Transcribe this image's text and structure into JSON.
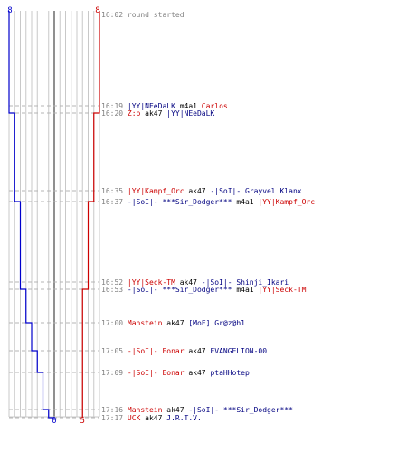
{
  "colors": {
    "blue": "#0000cc",
    "red": "#cc0000",
    "grid": "#c8c8c8",
    "dash": "#b4b4b4",
    "center": "#606060",
    "time": "#808080",
    "text": "#000080"
  },
  "chart_data": {
    "type": "line",
    "title": "",
    "xlabel": "",
    "ylabel": "",
    "axis": {
      "top_left_label": "8",
      "top_right_label": "8",
      "bottom_center_label": "0",
      "bottom_red_label": "5"
    },
    "series": [
      {
        "team": "blue",
        "points": [
          {
            "time": "16:02",
            "alive": 8
          },
          {
            "time": "16:19",
            "alive": 8
          },
          {
            "time": "16:20",
            "alive": 7
          },
          {
            "time": "16:35",
            "alive": 7
          },
          {
            "time": "16:37",
            "alive": 6
          },
          {
            "time": "16:52",
            "alive": 6
          },
          {
            "time": "16:53",
            "alive": 5
          },
          {
            "time": "17:00",
            "alive": 4
          },
          {
            "time": "17:05",
            "alive": 3
          },
          {
            "time": "17:09",
            "alive": 2
          },
          {
            "time": "17:16",
            "alive": 1
          },
          {
            "time": "17:17",
            "alive": 0
          }
        ]
      },
      {
        "team": "red",
        "points": [
          {
            "time": "16:02",
            "alive": 8
          },
          {
            "time": "16:19",
            "alive": 8
          },
          {
            "time": "16:20",
            "alive": 7
          },
          {
            "time": "16:35",
            "alive": 7
          },
          {
            "time": "16:37",
            "alive": 6
          },
          {
            "time": "16:52",
            "alive": 6
          },
          {
            "time": "16:53",
            "alive": 5
          },
          {
            "time": "17:17",
            "alive": 5
          }
        ]
      }
    ],
    "events": [
      {
        "time": "16:02",
        "parts": [
          {
            "t": "round started",
            "c": "gray"
          }
        ]
      },
      {
        "time": "16:19",
        "parts": [
          {
            "t": "|YY|NEeDaLK",
            "c": "blue"
          },
          {
            "t": " m4a1 ",
            "c": "black"
          },
          {
            "t": "Carlos",
            "c": "red"
          }
        ]
      },
      {
        "time": "16:20",
        "parts": [
          {
            "t": "Z:p",
            "c": "red"
          },
          {
            "t": " ak47 ",
            "c": "black"
          },
          {
            "t": "|YY|NEeDaLK",
            "c": "blue"
          }
        ]
      },
      {
        "time": "16:35",
        "parts": [
          {
            "t": "|YY|Kampf_Orc",
            "c": "red"
          },
          {
            "t": " ak47 ",
            "c": "black"
          },
          {
            "t": "-|SoI|- Grayvel Klanx",
            "c": "blue"
          }
        ]
      },
      {
        "time": "16:37",
        "parts": [
          {
            "t": "-|SoI|- ***Sir_Dodger***",
            "c": "blue"
          },
          {
            "t": " m4a1 ",
            "c": "black"
          },
          {
            "t": "|YY|Kampf_Orc",
            "c": "red"
          }
        ]
      },
      {
        "time": "16:52",
        "parts": [
          {
            "t": "|YY|Seck-TM",
            "c": "red"
          },
          {
            "t": " ak47 ",
            "c": "black"
          },
          {
            "t": "-|SoI|- Shinji_Ikari",
            "c": "blue"
          }
        ]
      },
      {
        "time": "16:53",
        "parts": [
          {
            "t": "-|SoI|- ***Sir_Dodger***",
            "c": "blue"
          },
          {
            "t": " m4a1 ",
            "c": "black"
          },
          {
            "t": "|YY|Seck-TM",
            "c": "red"
          }
        ]
      },
      {
        "time": "17:00",
        "parts": [
          {
            "t": "Manstein",
            "c": "red"
          },
          {
            "t": " ak47 ",
            "c": "black"
          },
          {
            "t": "[MoF] Gr@z@h1",
            "c": "blue"
          }
        ]
      },
      {
        "time": "17:05",
        "parts": [
          {
            "t": "-|SoI|- Eonar",
            "c": "red"
          },
          {
            "t": " ak47 ",
            "c": "black"
          },
          {
            "t": "EVANGELION-00",
            "c": "blue"
          }
        ]
      },
      {
        "time": "17:09",
        "parts": [
          {
            "t": "-|SoI|- Eonar",
            "c": "red"
          },
          {
            "t": " ak47 ",
            "c": "black"
          },
          {
            "t": "ptaHHotep",
            "c": "blue"
          }
        ]
      },
      {
        "time": "17:16",
        "parts": [
          {
            "t": "Manstein",
            "c": "red"
          },
          {
            "t": " ak47 ",
            "c": "black"
          },
          {
            "t": "-|SoI|- ***Sir_Dodger***",
            "c": "blue"
          }
        ]
      },
      {
        "time": "17:17",
        "parts": [
          {
            "t": "UCK",
            "c": "red"
          },
          {
            "t": " ak47 ",
            "c": "black"
          },
          {
            "t": "J.R.T.V.",
            "c": "blue"
          }
        ]
      }
    ]
  }
}
